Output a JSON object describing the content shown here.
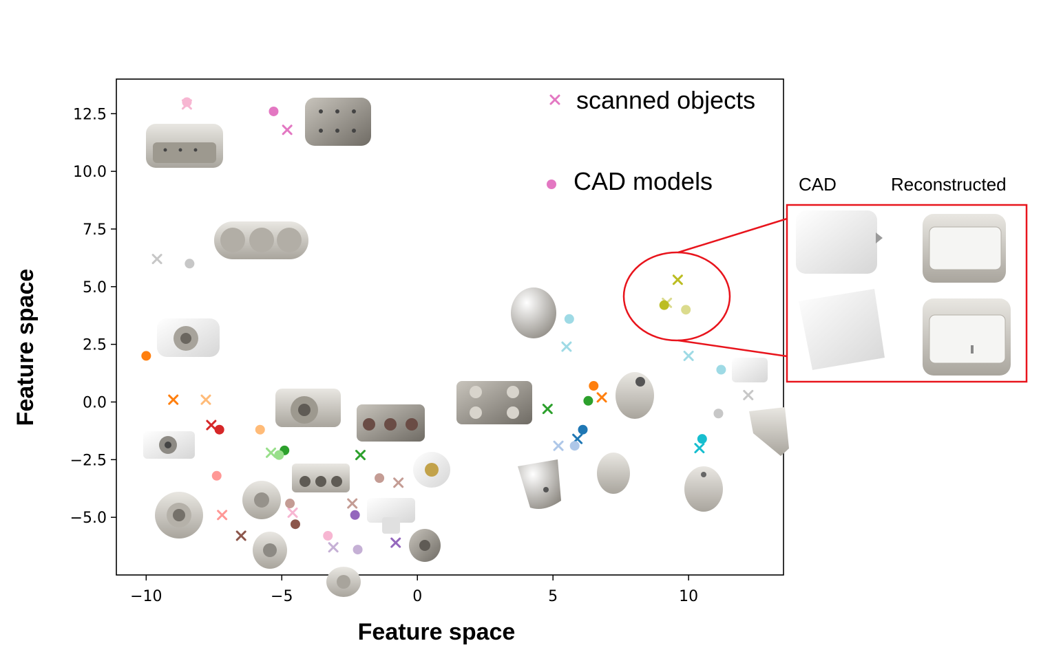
{
  "chart_data": {
    "type": "scatter",
    "title": "",
    "xlabel": "Feature space",
    "ylabel": "Feature space",
    "xlim": [
      -11.1,
      13.5
    ],
    "ylim": [
      -7.5,
      14.0
    ],
    "xticks": [
      -10,
      -5,
      0,
      5,
      10
    ],
    "xtick_labels": [
      "−10",
      "−5",
      "0",
      "5",
      "10"
    ],
    "yticks": [
      -5.0,
      -2.5,
      0.0,
      2.5,
      5.0,
      7.5,
      10.0,
      12.5
    ],
    "ytick_labels": [
      "−5.0",
      "−2.5",
      "0.0",
      "2.5",
      "5.0",
      "7.5",
      "10.0",
      "12.5"
    ],
    "legend": {
      "placement": "top-right",
      "entries": [
        {
          "marker": "x",
          "label": "scanned objects",
          "color": "#e377c2"
        },
        {
          "marker": "o",
          "label": "CAD models",
          "color": "#e377c2"
        }
      ]
    },
    "series": [
      {
        "marker": "x",
        "points": [
          {
            "x": -8.5,
            "y": 12.9,
            "color": "#f7b6d2"
          },
          {
            "x": -4.8,
            "y": 11.8,
            "color": "#e377c2"
          },
          {
            "x": -9.6,
            "y": 6.2,
            "color": "#c7c7c7"
          },
          {
            "x": -9.0,
            "y": 0.1,
            "color": "#ff7f0e"
          },
          {
            "x": -7.8,
            "y": 0.1,
            "color": "#ffbb78"
          },
          {
            "x": -7.6,
            "y": -1.0,
            "color": "#d62728"
          },
          {
            "x": -5.4,
            "y": -2.2,
            "color": "#98df8a"
          },
          {
            "x": -2.1,
            "y": -2.3,
            "color": "#2ca02c"
          },
          {
            "x": -7.2,
            "y": -4.9,
            "color": "#ff9896"
          },
          {
            "x": -6.5,
            "y": -5.8,
            "color": "#8c564b"
          },
          {
            "x": -4.6,
            "y": -4.8,
            "color": "#f7b6d2"
          },
          {
            "x": -2.4,
            "y": -4.4,
            "color": "#c49c94"
          },
          {
            "x": -0.7,
            "y": -3.5,
            "color": "#c49c94"
          },
          {
            "x": -3.1,
            "y": -6.3,
            "color": "#c5b0d5"
          },
          {
            "x": -0.8,
            "y": -6.1,
            "color": "#9467bd"
          },
          {
            "x": 4.8,
            "y": -0.3,
            "color": "#2ca02c"
          },
          {
            "x": 6.8,
            "y": 0.2,
            "color": "#ff7f0e"
          },
          {
            "x": 5.5,
            "y": 2.4,
            "color": "#9edae5"
          },
          {
            "x": 5.2,
            "y": -1.9,
            "color": "#aec7e8"
          },
          {
            "x": 5.9,
            "y": -1.6,
            "color": "#1f77b4"
          },
          {
            "x": 9.6,
            "y": 5.3,
            "color": "#bcbd22"
          },
          {
            "x": 9.2,
            "y": 4.3,
            "color": "#dbdb8d"
          },
          {
            "x": 10.0,
            "y": 2.0,
            "color": "#9edae5"
          },
          {
            "x": 10.4,
            "y": -2.0,
            "color": "#17becf"
          },
          {
            "x": 12.2,
            "y": 0.3,
            "color": "#c7c7c7"
          }
        ]
      },
      {
        "marker": "o",
        "points": [
          {
            "x": -8.5,
            "y": 13.0,
            "color": "#f7b6d2"
          },
          {
            "x": -5.3,
            "y": 12.6,
            "color": "#e377c2"
          },
          {
            "x": -8.4,
            "y": 6.0,
            "color": "#c7c7c7"
          },
          {
            "x": -10.0,
            "y": 2.0,
            "color": "#ff7f0e"
          },
          {
            "x": -7.3,
            "y": -1.2,
            "color": "#d62728"
          },
          {
            "x": -5.8,
            "y": -1.2,
            "color": "#ffbb78"
          },
          {
            "x": -4.9,
            "y": -2.1,
            "color": "#2ca02c"
          },
          {
            "x": -5.1,
            "y": -2.3,
            "color": "#98df8a"
          },
          {
            "x": -7.4,
            "y": -3.2,
            "color": "#ff9896"
          },
          {
            "x": -4.7,
            "y": -4.4,
            "color": "#c49c94"
          },
          {
            "x": -4.5,
            "y": -5.3,
            "color": "#8c564b"
          },
          {
            "x": -2.3,
            "y": -4.9,
            "color": "#9467bd"
          },
          {
            "x": -1.4,
            "y": -3.3,
            "color": "#c49c94"
          },
          {
            "x": -3.3,
            "y": -5.8,
            "color": "#f7b6d2"
          },
          {
            "x": -2.2,
            "y": -6.4,
            "color": "#c5b0d5"
          },
          {
            "x": 6.5,
            "y": 0.7,
            "color": "#ff7f0e"
          },
          {
            "x": 6.3,
            "y": 0.05,
            "color": "#2ca02c"
          },
          {
            "x": 5.6,
            "y": 3.6,
            "color": "#9edae5"
          },
          {
            "x": 6.1,
            "y": -1.2,
            "color": "#1f77b4"
          },
          {
            "x": 5.8,
            "y": -1.9,
            "color": "#aec7e8"
          },
          {
            "x": 9.9,
            "y": 4.0,
            "color": "#dbdb8d"
          },
          {
            "x": 9.1,
            "y": 4.2,
            "color": "#bcbd22"
          },
          {
            "x": 11.2,
            "y": 1.4,
            "color": "#9edae5"
          },
          {
            "x": 11.1,
            "y": -0.5,
            "color": "#c7c7c7"
          },
          {
            "x": 10.5,
            "y": -1.6,
            "color": "#17becf"
          }
        ]
      }
    ],
    "annotations": {
      "highlight_center": {
        "x": 9.6,
        "y": 4.6
      },
      "inset_headers": [
        "CAD",
        "Reconstructed"
      ],
      "callout_color": "#e8141c"
    }
  }
}
